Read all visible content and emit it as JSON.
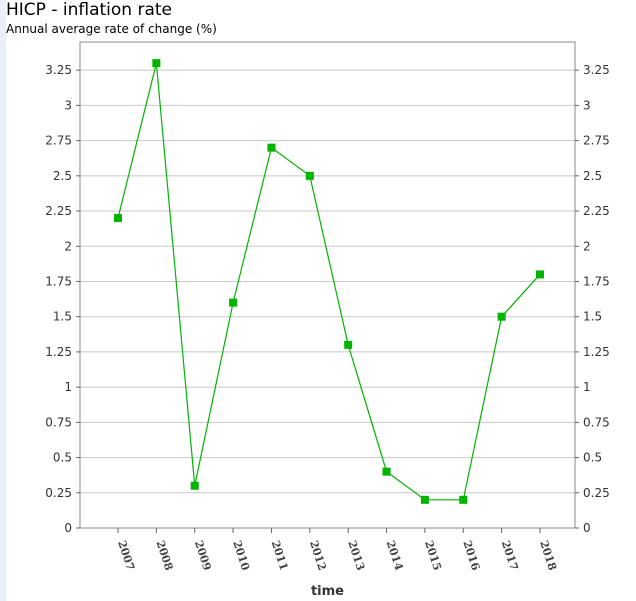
{
  "header": {
    "title": "HICP - inflation rate",
    "subtitle": "Annual average rate of change (%)"
  },
  "chart_data": {
    "type": "line",
    "title": "HICP - inflation rate",
    "subtitle": "Annual average rate of change (%)",
    "xlabel": "time",
    "ylabel": "",
    "categories": [
      "2007",
      "2008",
      "2009",
      "2010",
      "2011",
      "2012",
      "2013",
      "2014",
      "2015",
      "2016",
      "2017",
      "2018"
    ],
    "series": [
      {
        "values": [
          2.2,
          3.3,
          0.3,
          1.6,
          2.7,
          2.5,
          1.3,
          0.4,
          0.2,
          0.2,
          1.5,
          1.8
        ],
        "color": "#00b400"
      }
    ],
    "ylim": [
      0,
      3.45
    ],
    "yticks": [
      "0",
      "0.25",
      "0.5",
      "0.75",
      "1",
      "1.25",
      "1.5",
      "1.75",
      "2",
      "2.25",
      "2.5",
      "2.75",
      "3",
      "3.25"
    ],
    "grid": true,
    "legend": "none"
  }
}
